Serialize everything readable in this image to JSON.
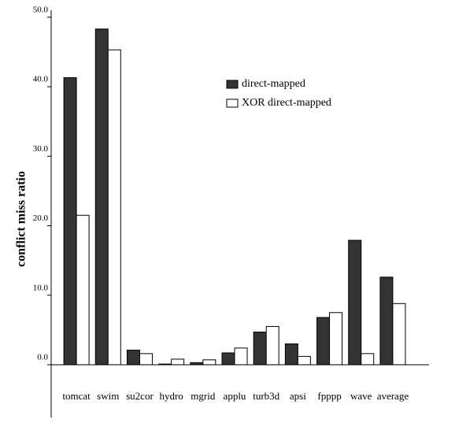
{
  "chart_data": {
    "type": "bar",
    "y_label": "conflict miss ratio",
    "categories": [
      "tomcat",
      "swim",
      "su2cor",
      "hydro",
      "mgrid",
      "applu",
      "turb3d",
      "apsi",
      "fpppp",
      "wave",
      "average"
    ],
    "series": [
      {
        "name": "direct-mapped",
        "color": "#333333",
        "values": [
          41.3,
          48.3,
          2.1,
          0.1,
          0.3,
          1.7,
          4.7,
          3.0,
          6.8,
          17.9,
          12.6
        ]
      },
      {
        "name": "XOR direct-mapped",
        "color": "#ffffff",
        "values": [
          21.5,
          45.3,
          1.6,
          0.8,
          0.7,
          2.4,
          5.5,
          1.2,
          7.5,
          1.6,
          8.8
        ]
      }
    ],
    "ylim": [
      -7.6,
      51
    ],
    "yticks": [
      {
        "value": 0,
        "label": "0.0"
      },
      {
        "value": 10,
        "label": "10.0"
      },
      {
        "value": 20,
        "label": "20.0"
      },
      {
        "value": 30,
        "label": "30.0"
      },
      {
        "value": 40,
        "label": "40.0"
      },
      {
        "value": 50,
        "label": "50.0"
      }
    ],
    "legend": "upper-right"
  }
}
